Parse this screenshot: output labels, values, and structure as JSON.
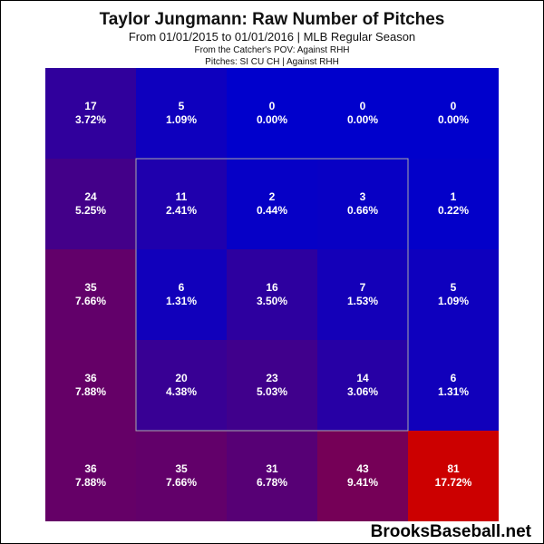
{
  "chart_data": {
    "type": "heatmap",
    "title": "Taylor Jungmann: Raw Number of Pitches",
    "subtitle": "From 01/01/2015 to 01/01/2016 | MLB Regular Season",
    "subtitle2": "From the Catcher's POV:  Against RHH",
    "subtitle3": "Pitches:  SI  CU  CH  |  Against RHH",
    "rows": 5,
    "cols": 5,
    "counts": [
      [
        17,
        5,
        0,
        0,
        0
      ],
      [
        24,
        11,
        2,
        3,
        1
      ],
      [
        35,
        6,
        16,
        7,
        5
      ],
      [
        36,
        20,
        23,
        14,
        6
      ],
      [
        36,
        35,
        31,
        43,
        81
      ]
    ],
    "percents": [
      [
        "3.72%",
        "1.09%",
        "0.00%",
        "0.00%",
        "0.00%"
      ],
      [
        "5.25%",
        "2.41%",
        "0.44%",
        "0.66%",
        "0.22%"
      ],
      [
        "7.66%",
        "1.31%",
        "3.50%",
        "1.53%",
        "1.09%"
      ],
      [
        "7.88%",
        "4.38%",
        "5.03%",
        "3.06%",
        "1.31%"
      ],
      [
        "7.88%",
        "7.66%",
        "6.78%",
        "9.41%",
        "17.72%"
      ]
    ],
    "colors": {
      "low": "#0000cc",
      "mid": "#660066",
      "high": "#cc0000",
      "strike_zone": "#aaaaaa"
    }
  },
  "watermark": "BrooksBaseball.net"
}
